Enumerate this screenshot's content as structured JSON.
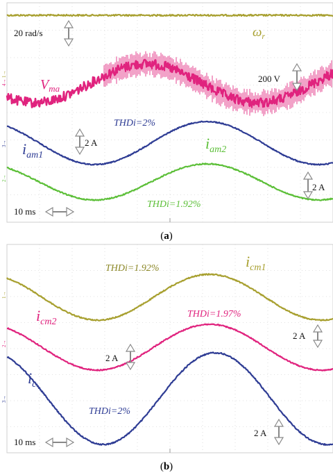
{
  "chart_data": [
    {
      "panel": "(a)",
      "type": "line",
      "caption": "(a)",
      "series": [
        {
          "name": "ωr",
          "label_main": "ω",
          "label_sub": "r",
          "color": "#a8a030",
          "shape": "flat",
          "noise": "light"
        },
        {
          "name": "Vma",
          "label_main": "V",
          "label_sub": "ma",
          "color": "#e0237e",
          "shape": "sine",
          "phase_peak_x": 0.42,
          "noise": "heavy"
        },
        {
          "name": "iam1",
          "label_main": "i",
          "label_sub": "am1",
          "color": "#2e3c94",
          "shape": "sine",
          "phase_peak_x": 0.62,
          "thd": "THDi=2%"
        },
        {
          "name": "iam2",
          "label_main": "i",
          "label_sub": "am2",
          "color": "#5cbf38",
          "shape": "sine",
          "phase_peak_x": 0.62,
          "thd": "THDi=1.92%"
        }
      ],
      "scales": {
        "speed": "20 rad/s",
        "voltage": "200 V",
        "current1": "2 A",
        "current2": "2 A",
        "time": "10 ms"
      }
    },
    {
      "panel": "(b)",
      "type": "line",
      "caption": "(b)",
      "series": [
        {
          "name": "icm1",
          "label_main": "i",
          "label_sub": "cm1",
          "color": "#a8a030",
          "shape": "sine",
          "thd": "THDi=1.92%"
        },
        {
          "name": "icm2",
          "label_main": "i",
          "label_sub": "cm2",
          "color": "#e0237e",
          "shape": "sine",
          "thd": "THDi=1.97%"
        },
        {
          "name": "ic",
          "label_main": "i",
          "label_sub": "c",
          "color": "#2e3c94",
          "shape": "sine",
          "thd": "THDi=2%"
        }
      ],
      "scales": {
        "current1": "2 A",
        "current2": "2 A",
        "time": "10 ms"
      }
    }
  ],
  "captions": {
    "a": "a",
    "b": "b"
  }
}
